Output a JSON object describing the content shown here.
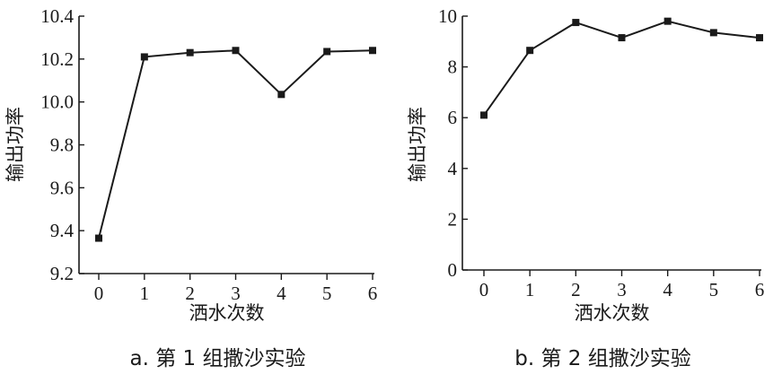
{
  "chart_data": [
    {
      "type": "line",
      "caption": "a. 第 1 组撒沙实验",
      "xlabel": "洒水次数",
      "ylabel": "输出功率",
      "x": [
        0,
        1,
        2,
        3,
        4,
        5,
        6
      ],
      "x_ticks": [
        "0",
        "1",
        "2",
        "3",
        "4",
        "5",
        "6"
      ],
      "values": [
        9.365,
        10.21,
        10.23,
        10.24,
        10.035,
        10.235,
        10.24
      ],
      "y_ticks": [
        "9.2",
        "9.4",
        "9.6",
        "9.8",
        "10.0",
        "10.2",
        "10.4"
      ],
      "ylim": [
        9.2,
        10.4
      ],
      "grid": false,
      "marker": "square",
      "color": "#1a1a1a"
    },
    {
      "type": "line",
      "caption": "b. 第 2 组撒沙实验",
      "xlabel": "洒水次数",
      "ylabel": "输出功率",
      "x": [
        0,
        1,
        2,
        3,
        4,
        5,
        6
      ],
      "x_ticks": [
        "0",
        "1",
        "2",
        "3",
        "4",
        "5",
        "6"
      ],
      "values": [
        6.1,
        8.65,
        9.75,
        9.15,
        9.8,
        9.35,
        9.15
      ],
      "y_ticks": [
        "0",
        "2",
        "4",
        "6",
        "8",
        "10"
      ],
      "ylim": [
        0,
        10
      ],
      "grid": false,
      "marker": "square",
      "color": "#1a1a1a"
    }
  ]
}
